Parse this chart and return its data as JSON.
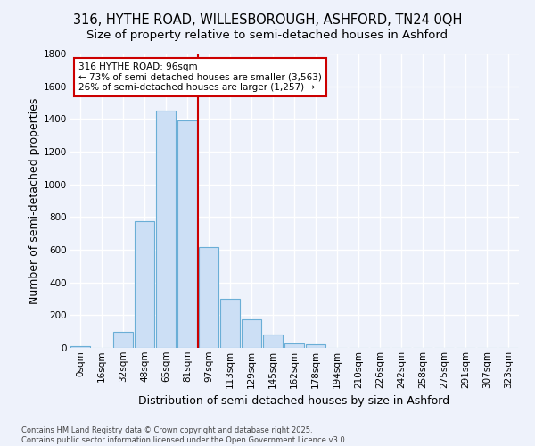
{
  "title": "316, HYTHE ROAD, WILLESBOROUGH, ASHFORD, TN24 0QH",
  "subtitle": "Size of property relative to semi-detached houses in Ashford",
  "xlabel": "Distribution of semi-detached houses by size in Ashford",
  "ylabel": "Number of semi-detached properties",
  "footnote1": "Contains HM Land Registry data © Crown copyright and database right 2025.",
  "footnote2": "Contains public sector information licensed under the Open Government Licence v3.0.",
  "bar_labels": [
    "0sqm",
    "16sqm",
    "32sqm",
    "48sqm",
    "65sqm",
    "81sqm",
    "97sqm",
    "113sqm",
    "129sqm",
    "145sqm",
    "162sqm",
    "178sqm",
    "194sqm",
    "210sqm",
    "226sqm",
    "242sqm",
    "258sqm",
    "275sqm",
    "291sqm",
    "307sqm",
    "323sqm"
  ],
  "bar_values": [
    10,
    0,
    100,
    775,
    1450,
    1390,
    615,
    300,
    175,
    80,
    30,
    20,
    0,
    0,
    0,
    0,
    0,
    0,
    0,
    0,
    0
  ],
  "bar_color": "#ccdff5",
  "bar_edge_color": "#6aaed6",
  "ylim": [
    0,
    1800
  ],
  "yticks": [
    0,
    200,
    400,
    600,
    800,
    1000,
    1200,
    1400,
    1600,
    1800
  ],
  "redline_bin": 6,
  "annotation_title": "316 HYTHE ROAD: 96sqm",
  "annotation_line1": "← 73% of semi-detached houses are smaller (3,563)",
  "annotation_line2": "26% of semi-detached houses are larger (1,257) →",
  "annotation_box_color": "#ffffff",
  "annotation_box_edge": "#cc0000",
  "redline_color": "#cc0000",
  "background_color": "#eef2fb",
  "grid_color": "#ffffff",
  "title_fontsize": 10.5,
  "axis_label_fontsize": 9,
  "tick_fontsize": 7.5
}
